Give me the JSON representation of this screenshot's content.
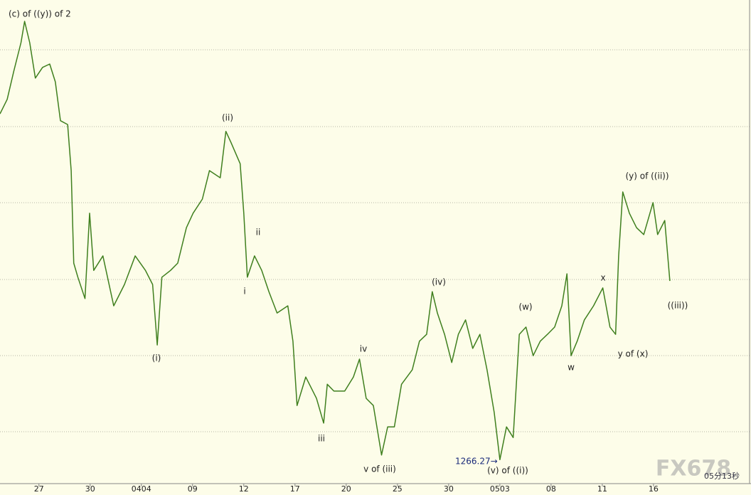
{
  "chart_data": {
    "type": "line",
    "color": "#3f7f1e",
    "xlim": [
      0.24,
      14.89
    ],
    "ylim": [
      1260,
      1387
    ],
    "xticks": [
      {
        "value": 1,
        "label": "27"
      },
      {
        "value": 2,
        "label": "30"
      },
      {
        "value": 3,
        "label": "0404"
      },
      {
        "value": 4,
        "label": "09"
      },
      {
        "value": 5,
        "label": "12"
      },
      {
        "value": 6,
        "label": "17"
      },
      {
        "value": 7,
        "label": "20"
      },
      {
        "value": 8,
        "label": "25"
      },
      {
        "value": 9,
        "label": "30"
      },
      {
        "value": 10,
        "label": "0503"
      },
      {
        "value": 11,
        "label": "08"
      },
      {
        "value": 12,
        "label": "11"
      },
      {
        "value": 13,
        "label": "16"
      }
    ],
    "x": [
      0.24,
      0.38,
      0.51,
      0.65,
      0.72,
      0.82,
      0.93,
      1.07,
      1.21,
      1.32,
      1.42,
      1.56,
      1.63,
      1.68,
      1.76,
      1.9,
      1.99,
      2.07,
      2.25,
      2.46,
      2.67,
      2.88,
      3.08,
      3.22,
      3.31,
      3.4,
      3.57,
      3.71,
      3.88,
      4.01,
      4.19,
      4.33,
      4.54,
      4.65,
      4.75,
      4.93,
      5.0,
      5.07,
      5.21,
      5.35,
      5.49,
      5.65,
      5.86,
      5.96,
      6.04,
      6.21,
      6.42,
      6.56,
      6.63,
      6.76,
      6.97,
      7.14,
      7.26,
      7.39,
      7.53,
      7.69,
      7.81,
      7.94,
      8.08,
      8.29,
      8.43,
      8.57,
      8.68,
      8.78,
      8.92,
      9.06,
      9.19,
      9.33,
      9.47,
      9.61,
      9.75,
      9.89,
      10.0,
      10.13,
      10.26,
      10.38,
      10.51,
      10.65,
      10.79,
      10.93,
      11.07,
      11.21,
      11.31,
      11.39,
      11.51,
      11.65,
      11.83,
      12.01,
      12.15,
      12.26,
      12.32,
      12.4,
      12.53,
      12.67,
      12.81,
      12.99,
      13.08,
      13.22,
      13.32
    ],
    "values": [
      1357.1,
      1360.9,
      1368.3,
      1375.8,
      1381.4,
      1375.8,
      1366.5,
      1369.3,
      1370.2,
      1365.5,
      1355.3,
      1354.3,
      1342.2,
      1317.9,
      1314.2,
      1308.6,
      1331.0,
      1316.0,
      1319.8,
      1306.7,
      1312.3,
      1319.8,
      1316.0,
      1312.3,
      1296.4,
      1314.2,
      1316.0,
      1317.9,
      1327.2,
      1331.0,
      1334.7,
      1342.2,
      1340.3,
      1352.5,
      1349.6,
      1344.0,
      1331.0,
      1314.2,
      1319.8,
      1316.0,
      1310.4,
      1304.8,
      1306.7,
      1297.4,
      1280.5,
      1288.0,
      1282.4,
      1275.9,
      1286.1,
      1284.3,
      1284.3,
      1288.0,
      1292.7,
      1282.4,
      1280.5,
      1267.5,
      1274.9,
      1274.9,
      1286.1,
      1289.9,
      1297.4,
      1299.2,
      1310.4,
      1304.8,
      1299.2,
      1291.8,
      1299.2,
      1303.0,
      1295.5,
      1299.2,
      1289.9,
      1278.7,
      1266.27,
      1274.9,
      1272.1,
      1299.2,
      1301.1,
      1293.6,
      1297.4,
      1299.2,
      1301.1,
      1306.7,
      1315.1,
      1293.6,
      1297.4,
      1303.0,
      1306.7,
      1311.4,
      1301.1,
      1299.2,
      1319.8,
      1336.6,
      1331.0,
      1327.2,
      1325.4,
      1333.8,
      1325.4,
      1329.1,
      1313.2
    ],
    "annotations": [
      "(c) of ((y)) of 2",
      "(i)",
      "(ii)",
      "i",
      "ii",
      "iii",
      "iv",
      "v of (iii)",
      "(iv)",
      "(v) of ((i))",
      "1266.27→",
      "(w)",
      "w",
      "x",
      "y of (x)",
      "(y) of ((ii))",
      "((iii))"
    ],
    "watermark": "FX678",
    "timer": "05分13秒"
  }
}
